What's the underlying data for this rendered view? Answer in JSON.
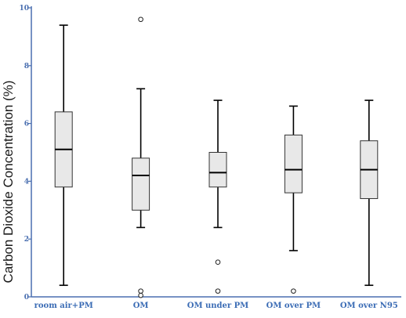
{
  "chart_data": {
    "type": "box",
    "title": "",
    "xlabel": "",
    "ylabel": "Carbon Dioxide Concentration (%)",
    "ylim": [
      0,
      10
    ],
    "yticks": [
      "0",
      "2",
      "4",
      "6",
      "8",
      "10"
    ],
    "grid": false,
    "categories": [
      "room air+PM",
      "OM",
      "OM under PM",
      "OM over PM",
      "OM over N95"
    ],
    "boxes": [
      {
        "min": 0.4,
        "q1": 3.8,
        "median": 5.1,
        "q3": 6.4,
        "max": 9.4,
        "outliers": []
      },
      {
        "min": 2.4,
        "q1": 3.0,
        "median": 4.2,
        "q3": 4.8,
        "max": 7.2,
        "outliers": [
          9.6,
          0.2,
          0.05
        ]
      },
      {
        "min": 2.4,
        "q1": 3.8,
        "median": 4.3,
        "q3": 5.0,
        "max": 6.8,
        "outliers": [
          1.2,
          0.2
        ]
      },
      {
        "min": 1.6,
        "q1": 3.6,
        "median": 4.4,
        "q3": 5.6,
        "max": 6.6,
        "outliers": [
          0.2
        ]
      },
      {
        "min": 0.4,
        "q1": 3.4,
        "median": 4.4,
        "q3": 5.4,
        "max": 6.8,
        "outliers": []
      }
    ],
    "colors": {
      "box_fill": "#e8e8e8",
      "axis": "#4a6fb0",
      "stroke": "#000000"
    }
  }
}
